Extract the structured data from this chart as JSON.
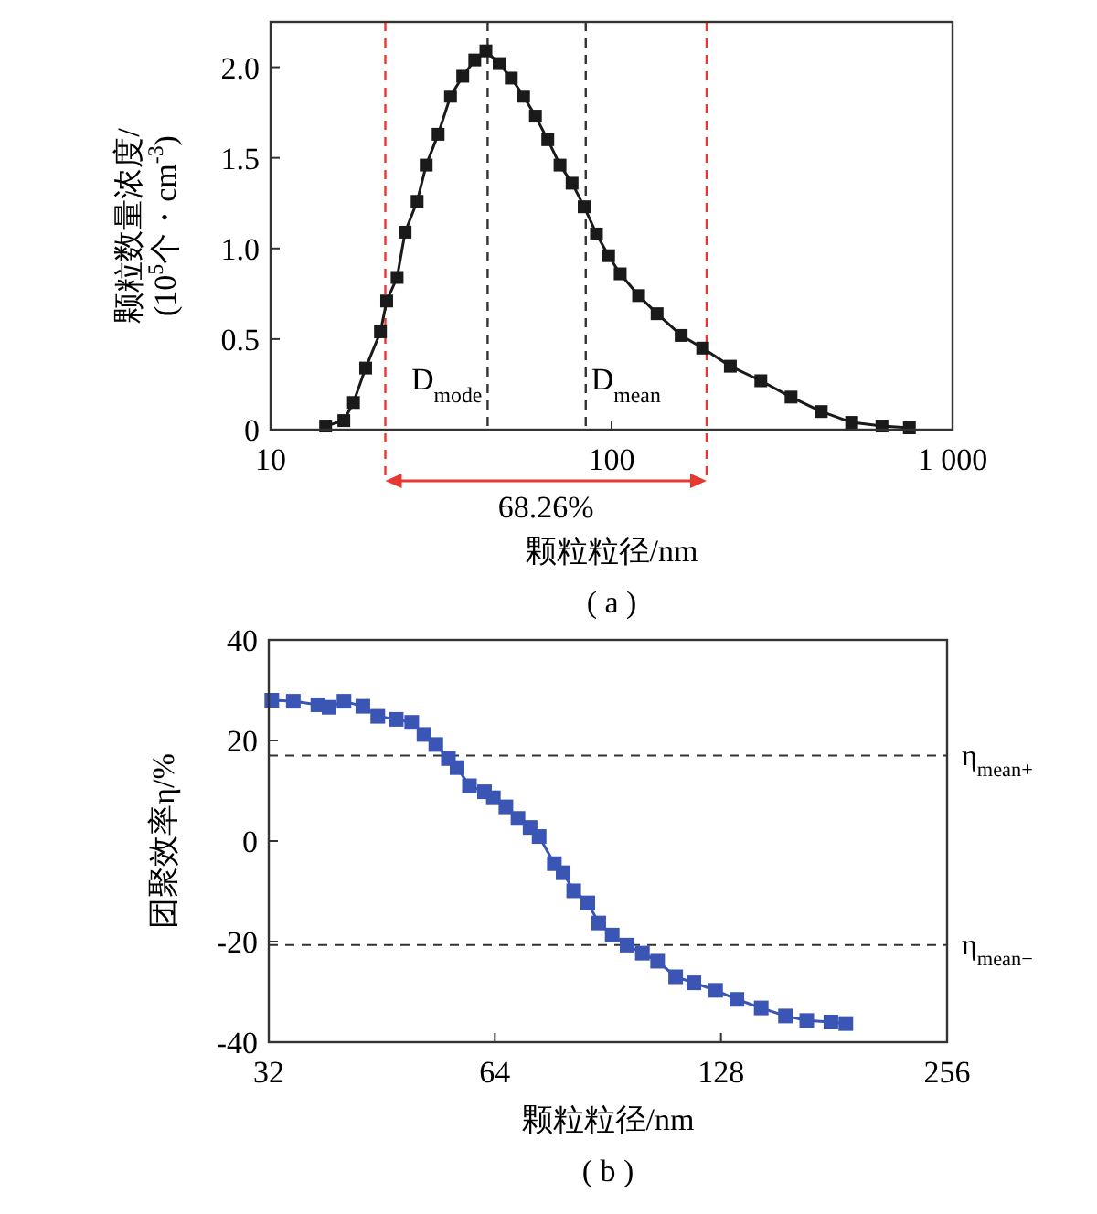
{
  "chart_data": [
    {
      "type": "line",
      "xlabel": "颗粒粒径/nm",
      "ylabel": "颗粒数量浓度/\n(10$^{5}$个・cm$^{-3}$)",
      "log": "x",
      "xlim": [
        10,
        1000
      ],
      "xticks": [
        10,
        100,
        {
          "value": 1000,
          "label": "1 000"
        }
      ],
      "ylim": [
        0,
        2.25
      ],
      "yticks": [
        0,
        0.5,
        {
          "value": 1,
          "label": "1.0"
        },
        1.5,
        {
          "value": 2,
          "label": "2.0"
        }
      ],
      "marker": "square",
      "line_style": "solid",
      "grid": false,
      "series": [
        {
          "color": "#1a1a1a",
          "x": [
            14.5,
            16.4,
            17.5,
            19.0,
            21.0,
            21.9,
            23.5,
            24.8,
            26.9,
            28.6,
            31.0,
            33.7,
            36.6,
            39.7,
            42.8,
            46.8,
            50.8,
            55.2,
            59.8,
            65.0,
            70.6,
            76.6,
            83.1,
            90.3,
            98,
            106,
            120,
            136,
            160,
            185,
            223,
            274,
            336,
            412,
            506,
            621,
            747
          ],
          "values": [
            0.02,
            0.05,
            0.15,
            0.34,
            0.54,
            0.71,
            0.84,
            1.09,
            1.26,
            1.46,
            1.63,
            1.84,
            1.95,
            2.04,
            2.09,
            2.02,
            1.94,
            1.84,
            1.73,
            1.6,
            1.46,
            1.36,
            1.23,
            1.08,
            0.96,
            0.86,
            0.74,
            0.64,
            0.52,
            0.45,
            0.35,
            0.27,
            0.18,
            0.1,
            0.04,
            0.02,
            0.01
          ]
        }
      ],
      "ref_lines": [
        {
          "axis": "x",
          "value": 21.7,
          "color": "#e8382f",
          "line_style": "dashed"
        },
        {
          "axis": "x",
          "value": 190,
          "color": "#e8382f",
          "line_style": "dashed"
        },
        {
          "axis": "x",
          "value": 43.3,
          "label": "D$_{mode}$",
          "color": "#333333",
          "line_style": "dashed"
        },
        {
          "axis": "x",
          "value": 84,
          "label": "D$_{mean}$",
          "color": "#333333",
          "line_style": "dashed"
        }
      ],
      "annotations": [
        "68.26%",
        "( a )"
      ]
    },
    {
      "type": "line",
      "xlabel": "颗粒粒径/nm",
      "ylabel": "团聚效率η/%",
      "log": "x",
      "xlim": [
        32,
        256
      ],
      "xticks": [
        32,
        64,
        128,
        256
      ],
      "ylim": [
        -40,
        40
      ],
      "yticks": [
        -40,
        -20,
        0,
        20,
        40
      ],
      "marker": "square",
      "line_style": "solid",
      "grid": false,
      "series": [
        {
          "color": "#3a55b4",
          "x": [
            32.3,
            34.5,
            37.2,
            38.5,
            40.3,
            42.7,
            44.7,
            47.3,
            49.6,
            51.5,
            53.4,
            55.5,
            57.0,
            59.2,
            62.0,
            63.7,
            66.2,
            68.7,
            71.3,
            73.3,
            76.8,
            78.9,
            81.5,
            85.1,
            88.0,
            91.7,
            96.0,
            100.6,
            105.4,
            111.4,
            117.8,
            125.9,
            134.4,
            144.8,
            156.0,
            166.5,
            179.3,
            187.7
          ],
          "values": [
            28.0,
            27.8,
            27.1,
            26.6,
            27.8,
            26.8,
            24.8,
            24.2,
            23.6,
            21.2,
            19.2,
            16.4,
            14.6,
            11.0,
            9.8,
            8.6,
            6.8,
            4.5,
            2.7,
            0.9,
            -4.5,
            -6.3,
            -9.9,
            -12.3,
            -16.3,
            -18.7,
            -20.7,
            -22.3,
            -23.9,
            -27.0,
            -28.2,
            -29.7,
            -31.5,
            -33.2,
            -34.8,
            -35.7,
            -36.0,
            -36.3
          ]
        }
      ],
      "ref_lines": [
        {
          "axis": "y",
          "value": 17.0,
          "label": "η$_{mean+}$",
          "color": "#333333",
          "line_style": "dashed"
        },
        {
          "axis": "y",
          "value": -20.7,
          "label": "η$_{mean−}$",
          "color": "#333333",
          "line_style": "dashed"
        }
      ],
      "annotations": [
        "( b )"
      ]
    }
  ]
}
